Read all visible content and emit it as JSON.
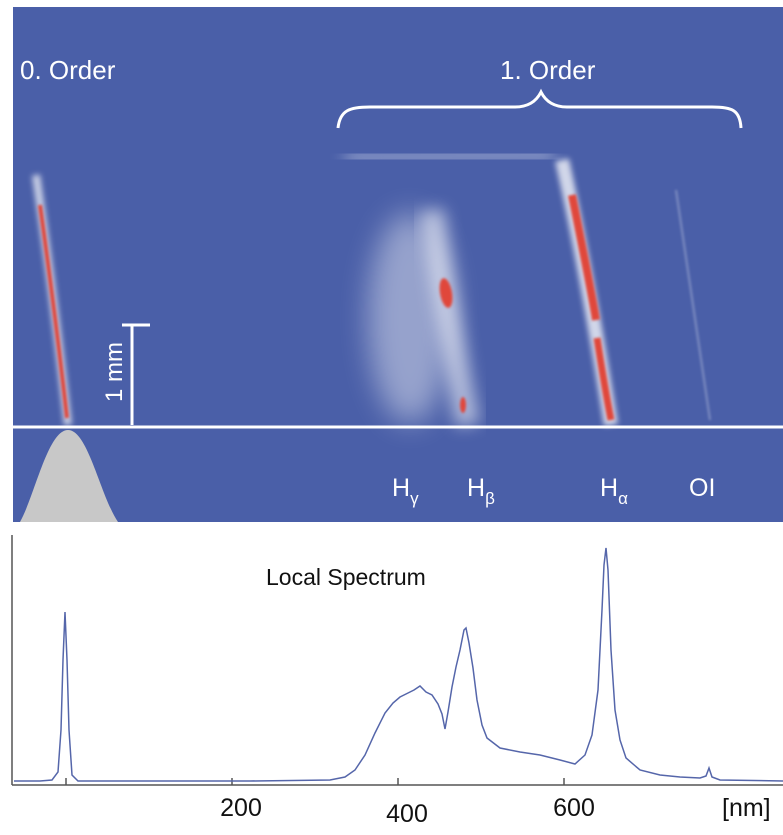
{
  "figure": {
    "spectrogram": {
      "background_color": "#4a5fa8",
      "label_zero_order": "0. Order",
      "label_first_order": "1. Order",
      "scale_bar_label": "1 mm",
      "line_labels": [
        {
          "name": "H",
          "sub": "γ"
        },
        {
          "name": "H",
          "sub": "β"
        },
        {
          "name": "H",
          "sub": "α"
        },
        {
          "name": "OI",
          "sub": ""
        }
      ]
    },
    "spectrum": {
      "title": "Local Spectrum",
      "line_color": "#5566aa",
      "x_tick_labels": [
        "200",
        "400",
        "600",
        "[nm]"
      ]
    }
  }
}
